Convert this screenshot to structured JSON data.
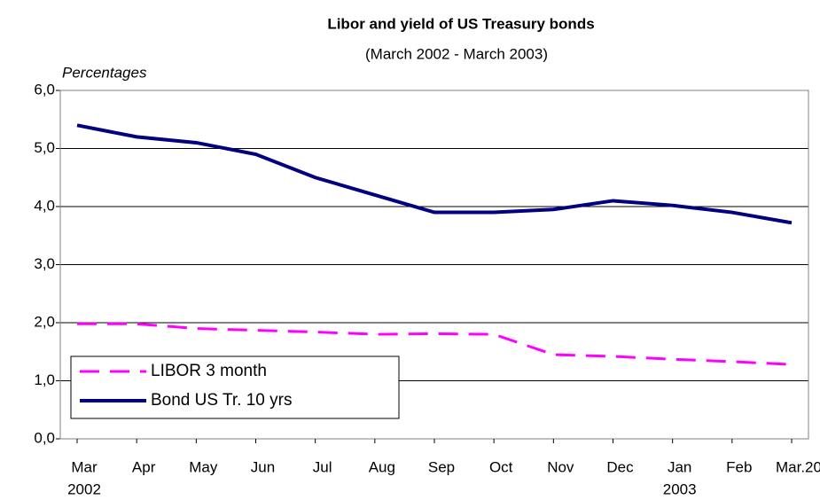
{
  "chart_data": {
    "type": "line",
    "title": "Libor and yield of US Treasury bonds",
    "subtitle": "(March 2002 - March 2003)",
    "y_label": "Percentages",
    "categories": [
      "Mar",
      "Apr",
      "May",
      "Jun",
      "Jul",
      "Aug",
      "Sep",
      "Oct",
      "Nov",
      "Dec",
      "Jan",
      "Feb",
      "Mar.20"
    ],
    "category_years": [
      "2002",
      null,
      null,
      null,
      null,
      null,
      null,
      null,
      null,
      null,
      "2003",
      null,
      null
    ],
    "series": [
      {
        "name": "LIBOR 3 month",
        "color": "#ff00ff",
        "dashed": true,
        "values": [
          1.98,
          1.98,
          1.9,
          1.87,
          1.84,
          1.8,
          1.81,
          1.8,
          1.45,
          1.42,
          1.37,
          1.33,
          1.28
        ]
      },
      {
        "name": "Bond US Tr. 10 yrs",
        "color": "#000080",
        "dashed": false,
        "values": [
          5.4,
          5.2,
          5.1,
          4.9,
          4.5,
          4.2,
          3.9,
          3.9,
          3.95,
          4.1,
          4.02,
          3.9,
          3.72
        ]
      }
    ],
    "ylim": [
      0,
      6
    ],
    "yticks": [
      {
        "value": 0,
        "label": "0,0"
      },
      {
        "value": 1,
        "label": "1,0"
      },
      {
        "value": 2,
        "label": "2,0"
      },
      {
        "value": 3,
        "label": "3,0"
      },
      {
        "value": 4,
        "label": "4,0"
      },
      {
        "value": 5,
        "label": "5,0"
      },
      {
        "value": 6,
        "label": "6,0"
      }
    ],
    "grid": true
  }
}
